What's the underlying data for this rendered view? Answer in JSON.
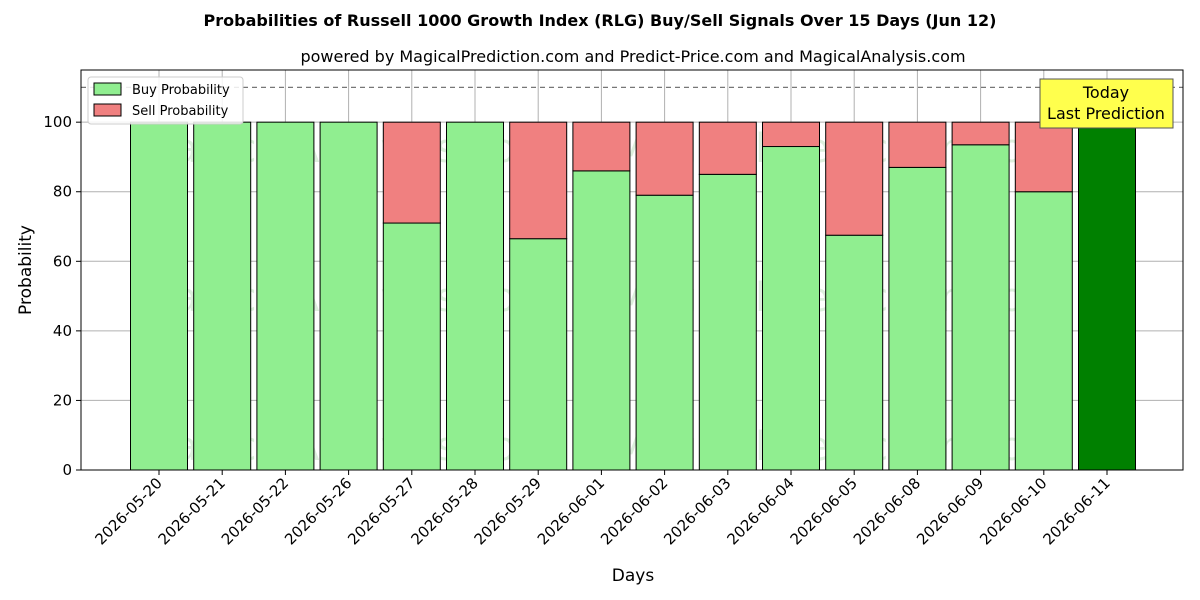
{
  "chart_data": {
    "type": "bar",
    "stacked": true,
    "title": "Probabilities of Russell 1000 Growth Index (RLG) Buy/Sell Signals Over 15 Days (Jun 12)",
    "subtitle": "powered by MagicalPrediction.com and Predict-Price.com and MagicalAnalysis.com",
    "xlabel": "Days",
    "ylabel": "Probability",
    "ylim": [
      0,
      115
    ],
    "yticks": [
      0,
      20,
      40,
      60,
      80,
      100
    ],
    "reference_line": 110,
    "grid": true,
    "legend_position": "top-left",
    "categories": [
      "2026-05-20",
      "2026-05-21",
      "2026-05-22",
      "2026-05-26",
      "2026-05-27",
      "2026-05-28",
      "2026-05-29",
      "2026-06-01",
      "2026-06-02",
      "2026-06-03",
      "2026-06-04",
      "2026-06-05",
      "2026-06-08",
      "2026-06-09",
      "2026-06-10",
      "2026-06-11"
    ],
    "series": [
      {
        "name": "Buy Probability",
        "color": "#90ee90",
        "values": [
          100,
          100,
          100,
          100,
          71,
          100,
          66.5,
          86,
          79,
          85,
          93,
          67.5,
          87,
          93.5,
          80,
          100
        ]
      },
      {
        "name": "Sell Probability",
        "color": "#f08080",
        "values": [
          0,
          0,
          0,
          0,
          29,
          0,
          33.5,
          14,
          21,
          15,
          7,
          32.5,
          13,
          6.5,
          20,
          0
        ]
      }
    ],
    "highlight": {
      "index": 15,
      "color": "#008000"
    },
    "annotation": {
      "line1": "Today",
      "line2": "Last Prediction",
      "bg": "#ffff4d"
    },
    "watermarks": [
      "MagicalAnalysis.com",
      "MagicalPrediction.com"
    ]
  }
}
